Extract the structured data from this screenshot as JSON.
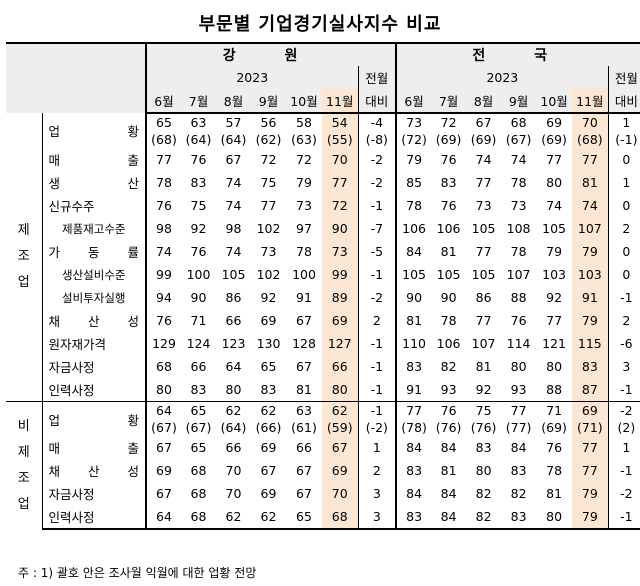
{
  "title": "부문별 기업경기실사지수 비교",
  "header": {
    "region_left": "강  원",
    "region_right": "전  국",
    "year": "2023",
    "months": [
      "6월",
      "7월",
      "8월",
      "9월",
      "10월",
      "11월"
    ],
    "change_top": "전월",
    "change_bottom": "대비"
  },
  "sections": [
    {
      "label": "제\n조\n업",
      "rows": [
        {
          "category": "업    황",
          "left": [
            "65",
            "63",
            "57",
            "56",
            "58",
            "54"
          ],
          "left_change": "-4",
          "left_sub": [
            "(68)",
            "(64)",
            "(64)",
            "(62)",
            "(63)",
            "(55)"
          ],
          "left_change_sub": "(-8)",
          "right": [
            "73",
            "72",
            "67",
            "68",
            "69",
            "70"
          ],
          "right_change": "1",
          "right_sub": [
            "(72)",
            "(69)",
            "(69)",
            "(67)",
            "(69)",
            "(68)"
          ],
          "right_change_sub": "(-1)"
        },
        {
          "category": "매    출",
          "left": [
            "77",
            "76",
            "67",
            "72",
            "72",
            "70"
          ],
          "left_change": "-2",
          "right": [
            "79",
            "76",
            "74",
            "74",
            "77",
            "77"
          ],
          "right_change": "0"
        },
        {
          "category": "생    산",
          "left": [
            "78",
            "83",
            "74",
            "75",
            "79",
            "77"
          ],
          "left_change": "-2",
          "right": [
            "85",
            "83",
            "77",
            "78",
            "80",
            "81"
          ],
          "right_change": "1"
        },
        {
          "category": "신규수주",
          "left": [
            "76",
            "75",
            "74",
            "77",
            "73",
            "72"
          ],
          "left_change": "-1",
          "right": [
            "78",
            "76",
            "73",
            "73",
            "74",
            "74"
          ],
          "right_change": "0"
        },
        {
          "category": "제품재고수준",
          "small": true,
          "left": [
            "98",
            "92",
            "98",
            "102",
            "97",
            "90"
          ],
          "left_change": "-7",
          "right": [
            "106",
            "106",
            "105",
            "108",
            "105",
            "107"
          ],
          "right_change": "2"
        },
        {
          "category": "가 동 률",
          "left": [
            "74",
            "76",
            "74",
            "73",
            "78",
            "73"
          ],
          "left_change": "-5",
          "right": [
            "84",
            "81",
            "77",
            "78",
            "79",
            "79"
          ],
          "right_change": "0"
        },
        {
          "category": "생산설비수준",
          "small": true,
          "left": [
            "99",
            "100",
            "105",
            "102",
            "100",
            "99"
          ],
          "left_change": "-1",
          "right": [
            "105",
            "105",
            "105",
            "107",
            "103",
            "103"
          ],
          "right_change": "0"
        },
        {
          "category": "설비투자실행",
          "small": true,
          "left": [
            "94",
            "90",
            "86",
            "92",
            "91",
            "89"
          ],
          "left_change": "-2",
          "right": [
            "90",
            "90",
            "86",
            "88",
            "92",
            "91"
          ],
          "right_change": "-1"
        },
        {
          "category": "채 산 성",
          "left": [
            "76",
            "71",
            "66",
            "69",
            "67",
            "69"
          ],
          "left_change": "2",
          "right": [
            "81",
            "78",
            "77",
            "76",
            "77",
            "79"
          ],
          "right_change": "2"
        },
        {
          "category": "원자재가격",
          "left": [
            "129",
            "124",
            "123",
            "130",
            "128",
            "127"
          ],
          "left_change": "-1",
          "right": [
            "110",
            "106",
            "107",
            "114",
            "121",
            "115"
          ],
          "right_change": "-6"
        },
        {
          "category": "자금사정",
          "left": [
            "68",
            "66",
            "64",
            "65",
            "67",
            "66"
          ],
          "left_change": "-1",
          "right": [
            "83",
            "82",
            "81",
            "80",
            "80",
            "83"
          ],
          "right_change": "3"
        },
        {
          "category": "인력사정",
          "left": [
            "80",
            "83",
            "80",
            "83",
            "81",
            "80"
          ],
          "left_change": "-1",
          "right": [
            "91",
            "93",
            "92",
            "93",
            "88",
            "87"
          ],
          "right_change": "-1"
        }
      ]
    },
    {
      "label": "비\n제\n조\n업",
      "rows": [
        {
          "category": "업    황",
          "left": [
            "64",
            "65",
            "62",
            "62",
            "63",
            "62"
          ],
          "left_change": "-1",
          "left_sub": [
            "(67)",
            "(67)",
            "(64)",
            "(66)",
            "(61)",
            "(59)"
          ],
          "left_change_sub": "(-2)",
          "right": [
            "77",
            "76",
            "75",
            "77",
            "71",
            "69"
          ],
          "right_change": "-2",
          "right_sub": [
            "(78)",
            "(76)",
            "(76)",
            "(77)",
            "(69)",
            "(71)"
          ],
          "right_change_sub": "(2)"
        },
        {
          "category": "매    출",
          "left": [
            "67",
            "65",
            "66",
            "69",
            "66",
            "67"
          ],
          "left_change": "1",
          "right": [
            "84",
            "84",
            "83",
            "84",
            "76",
            "77"
          ],
          "right_change": "1"
        },
        {
          "category": "채 산 성",
          "left": [
            "69",
            "68",
            "70",
            "67",
            "67",
            "69"
          ],
          "left_change": "2",
          "right": [
            "83",
            "81",
            "80",
            "83",
            "78",
            "77"
          ],
          "right_change": "-1"
        },
        {
          "category": "자금사정",
          "left": [
            "67",
            "68",
            "70",
            "69",
            "67",
            "70"
          ],
          "left_change": "3",
          "right": [
            "84",
            "84",
            "82",
            "82",
            "81",
            "79"
          ],
          "right_change": "-2"
        },
        {
          "category": "인력사정",
          "left": [
            "64",
            "68",
            "62",
            "62",
            "65",
            "68"
          ],
          "left_change": "3",
          "right": [
            "83",
            "84",
            "82",
            "83",
            "80",
            "79"
          ],
          "right_change": "-1"
        }
      ]
    }
  ],
  "note": "주 : 1) 괄호 안은 조사월 익월에 대한 업황 전망"
}
